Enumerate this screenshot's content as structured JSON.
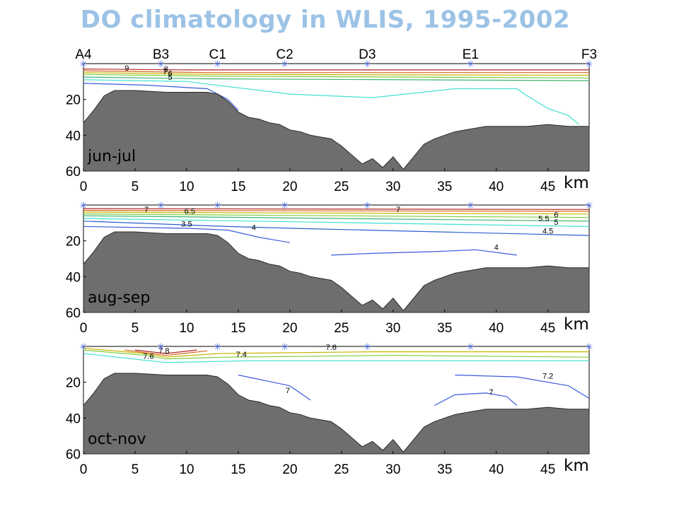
{
  "title": "DO climatology in WLIS, 1995-2002",
  "chart_data": {
    "type": "contour",
    "x_unit": "km",
    "x_ticks": [
      0,
      5,
      10,
      15,
      20,
      25,
      30,
      35,
      40,
      45
    ],
    "xlim": [
      0,
      49
    ],
    "y_ticks": [
      20,
      40,
      60
    ],
    "ylim": [
      0,
      60
    ],
    "y_inverted": true,
    "stations": [
      {
        "name": "A4",
        "km": 0
      },
      {
        "name": "B3",
        "km": 7.5
      },
      {
        "name": "C1",
        "km": 13
      },
      {
        "name": "C2",
        "km": 19.5
      },
      {
        "name": "D3",
        "km": 27.5
      },
      {
        "name": "E1",
        "km": 37.5
      },
      {
        "name": "F3",
        "km": 49
      }
    ],
    "bathymetry_depth": [
      [
        0,
        33
      ],
      [
        1,
        26
      ],
      [
        2,
        18
      ],
      [
        3,
        15
      ],
      [
        5,
        15
      ],
      [
        8,
        16
      ],
      [
        10,
        16
      ],
      [
        12,
        16
      ],
      [
        13,
        17
      ],
      [
        14,
        21
      ],
      [
        15,
        27
      ],
      [
        16,
        30
      ],
      [
        17,
        31
      ],
      [
        18,
        33
      ],
      [
        19,
        34
      ],
      [
        20,
        37
      ],
      [
        21,
        38
      ],
      [
        22,
        40
      ],
      [
        23,
        41
      ],
      [
        24,
        42
      ],
      [
        25,
        46
      ],
      [
        26,
        51
      ],
      [
        27,
        56
      ],
      [
        28,
        53
      ],
      [
        29,
        58
      ],
      [
        30,
        52
      ],
      [
        31,
        59
      ],
      [
        32,
        52
      ],
      [
        33,
        45
      ],
      [
        34,
        42
      ],
      [
        35,
        40
      ],
      [
        36,
        38
      ],
      [
        37,
        37
      ],
      [
        38,
        36
      ],
      [
        39,
        35
      ],
      [
        41,
        35
      ],
      [
        43,
        35
      ],
      [
        45,
        34
      ],
      [
        47,
        35
      ],
      [
        49,
        35
      ]
    ],
    "panels": [
      {
        "season": "jun-jul",
        "contour_labels": [
          {
            "text": "9",
            "km": 4.2,
            "depth": 4
          },
          {
            "text": "8",
            "km": 8.0,
            "depth": 4.5
          },
          {
            "text": "7",
            "km": 7.9,
            "depth": 6
          },
          {
            "text": "6",
            "km": 8.4,
            "depth": 7
          },
          {
            "text": "5",
            "km": 8.4,
            "depth": 9
          }
        ]
      },
      {
        "season": "aug-sep",
        "contour_labels": [
          {
            "text": "7",
            "km": 6.1,
            "depth": 4
          },
          {
            "text": "6.5",
            "km": 10.3,
            "depth": 5
          },
          {
            "text": "3.5",
            "km": 10.0,
            "depth": 12
          },
          {
            "text": "4",
            "km": 16.5,
            "depth": 14
          },
          {
            "text": "7",
            "km": 30.5,
            "depth": 4
          },
          {
            "text": "6",
            "km": 45.8,
            "depth": 7
          },
          {
            "text": "5.5",
            "km": 44.6,
            "depth": 9
          },
          {
            "text": "5",
            "km": 45.8,
            "depth": 11
          },
          {
            "text": "4.5",
            "km": 45.0,
            "depth": 16
          },
          {
            "text": "4",
            "km": 40.0,
            "depth": 25
          }
        ]
      },
      {
        "season": "oct-nov",
        "contour_labels": [
          {
            "text": "7.8",
            "km": 7.8,
            "depth": 4
          },
          {
            "text": "7.6",
            "km": 6.3,
            "depth": 7
          },
          {
            "text": "7.4",
            "km": 15.3,
            "depth": 6
          },
          {
            "text": "7.6",
            "km": 24.0,
            "depth": 2
          },
          {
            "text": "7.2",
            "km": 45.0,
            "depth": 18
          },
          {
            "text": "7",
            "km": 19.8,
            "depth": 26
          },
          {
            "text": "7",
            "km": 39.5,
            "depth": 27
          }
        ]
      }
    ]
  }
}
